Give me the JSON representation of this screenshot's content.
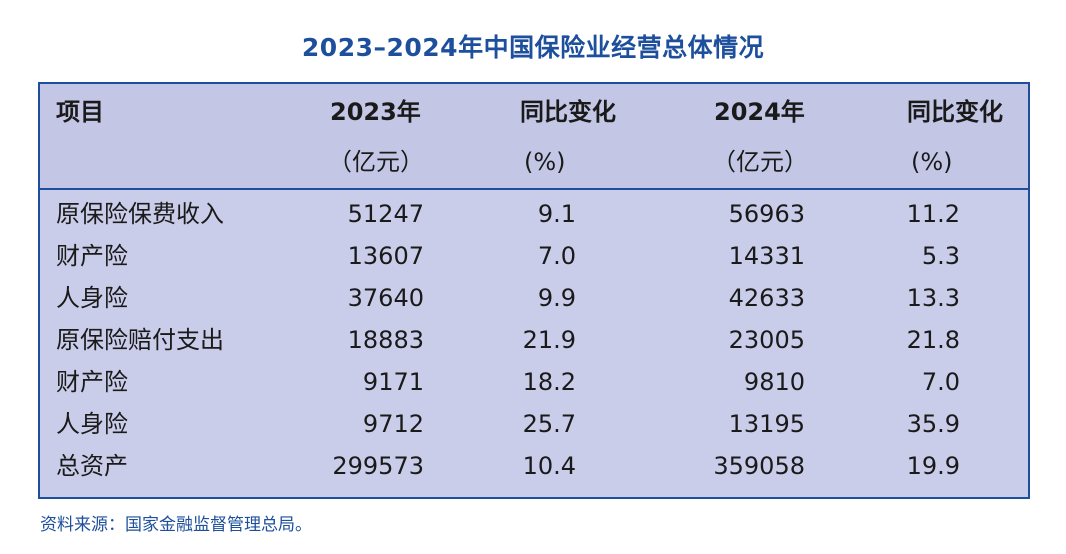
{
  "chart_data": {
    "type": "table",
    "title": "2023–2024年中国保险业经营总体情况",
    "columns": [
      {
        "line1": "项目",
        "line2": ""
      },
      {
        "line1": "2023年",
        "line2": "（亿元）"
      },
      {
        "line1": "同比变化",
        "line2": "(%)"
      },
      {
        "line1": "2024年",
        "line2": "（亿元）"
      },
      {
        "line1": "同比变化",
        "line2": "(%)"
      }
    ],
    "rows": [
      {
        "item": "原保险保费收入",
        "v2023": "51247",
        "chg2023": "9.1",
        "v2024": "56963",
        "chg2024": "11.2"
      },
      {
        "item": "财产险",
        "v2023": "13607",
        "chg2023": "7.0",
        "v2024": "14331",
        "chg2024": "5.3"
      },
      {
        "item": "人身险",
        "v2023": "37640",
        "chg2023": "9.9",
        "v2024": "42633",
        "chg2024": "13.3"
      },
      {
        "item": "原保险赔付支出",
        "v2023": "18883",
        "chg2023": "21.9",
        "v2024": "23005",
        "chg2024": "21.8"
      },
      {
        "item": "财产险",
        "v2023": "9171",
        "chg2023": "18.2",
        "v2024": "9810",
        "chg2024": "7.0"
      },
      {
        "item": "人身险",
        "v2023": "9712",
        "chg2023": "25.7",
        "v2024": "13195",
        "chg2024": "35.9"
      },
      {
        "item": "总资产",
        "v2023": "299573",
        "chg2023": "10.4",
        "v2024": "359058",
        "chg2024": "19.9"
      }
    ],
    "source": "资料来源：国家金融监督管理总局。"
  },
  "colors": {
    "accent": "#1d4f9c",
    "table_background": "#c9cde9"
  }
}
